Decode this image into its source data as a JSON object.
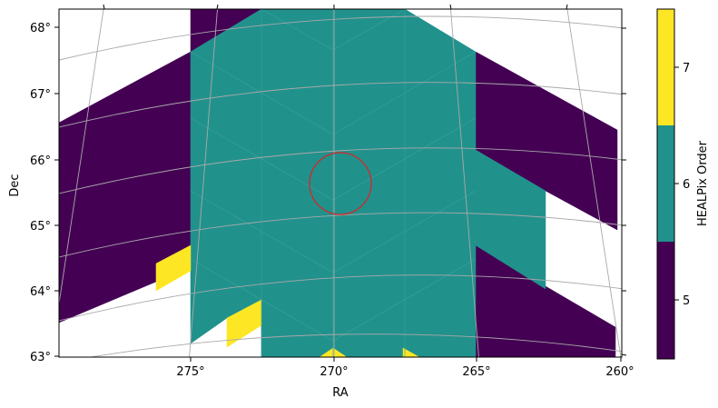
{
  "chart_data": {
    "type": "heatmap",
    "title": "",
    "xlabel": "RA",
    "ylabel": "Dec",
    "colorbar_label": "HEALPix Order",
    "x_ticks": [
      "275°",
      "270°",
      "265°",
      "260°"
    ],
    "y_ticks": [
      "63°",
      "64°",
      "65°",
      "66°",
      "67°",
      "68°"
    ],
    "colorbar_ticks": [
      "5",
      "6",
      "7"
    ],
    "levels": [
      {
        "order": 5,
        "color": "#440154"
      },
      {
        "order": 6,
        "color": "#21918c"
      },
      {
        "order": 7,
        "color": "#fde725"
      }
    ],
    "grid": true,
    "marker": {
      "shape": "circle",
      "ra": 269.8,
      "dec": 65.6,
      "color": "#d62728"
    }
  }
}
